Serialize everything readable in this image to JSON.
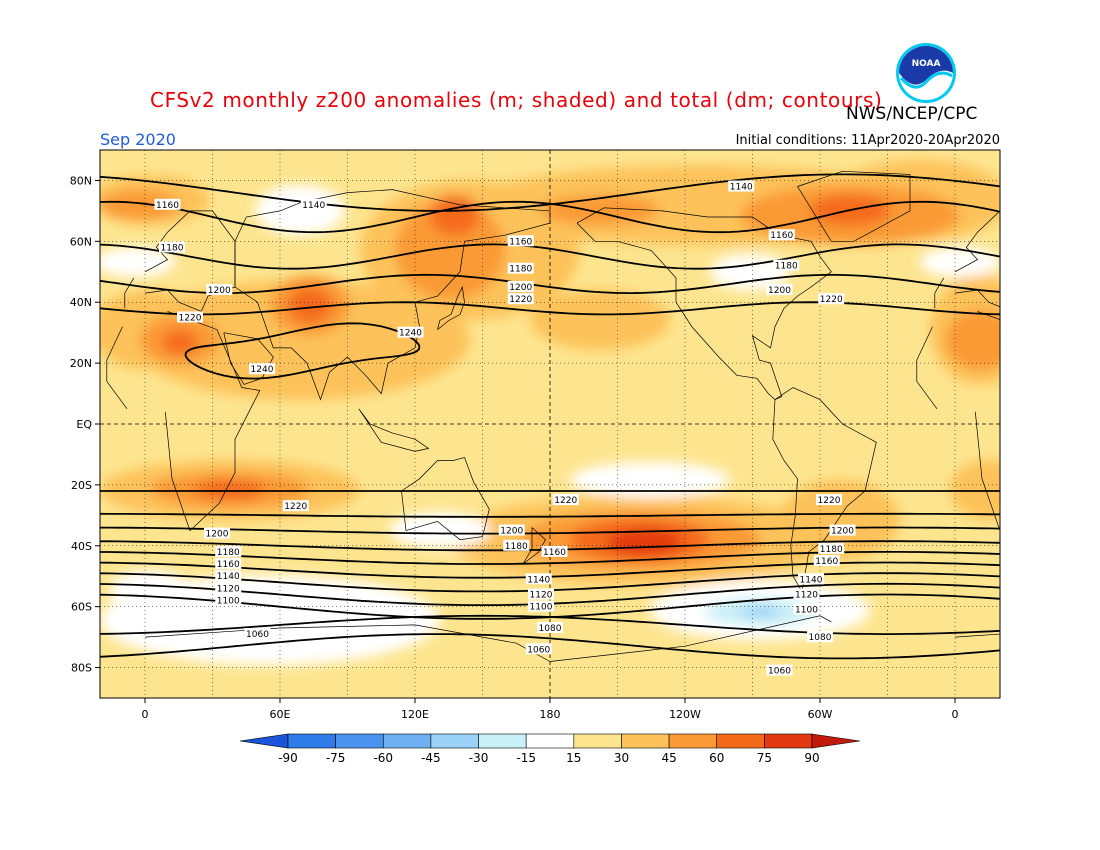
{
  "header": {
    "title": "CFSv2 monthly z200 anomalies (m; shaded) and total (dm; contours)",
    "agency": "NWS/NCEP/CPC",
    "month": "Sep 2020",
    "initial_conditions": "Initial conditions: 11Apr2020-20Apr2020",
    "logo_icon": "noaa-logo-icon",
    "logo_text": "NOAA"
  },
  "axes": {
    "lat_labels": [
      "80N",
      "60N",
      "40N",
      "20N",
      "EQ",
      "20S",
      "40S",
      "60S",
      "80S"
    ],
    "lat_values": [
      80,
      60,
      40,
      20,
      0,
      -20,
      -40,
      -60,
      -80
    ],
    "lon_labels": [
      "0",
      "60E",
      "120E",
      "180",
      "120W",
      "60W",
      "0"
    ],
    "lon_values": [
      0,
      60,
      120,
      180,
      240,
      300,
      360
    ],
    "lat_range": [
      -90,
      90
    ],
    "lon_range": [
      -20,
      380
    ]
  },
  "colorbar": {
    "labels": [
      "-90",
      "-75",
      "-60",
      "-45",
      "-30",
      "-15",
      "15",
      "30",
      "45",
      "60",
      "75",
      "90"
    ],
    "colors": [
      "#1a55d9",
      "#2f7be8",
      "#4a94ef",
      "#6eb0f2",
      "#9bd2f7",
      "#c8f0f6",
      "#ffffff",
      "#fde58f",
      "#fdc25a",
      "#fa9a36",
      "#f46a1b",
      "#e23811",
      "#c01a0c"
    ]
  },
  "contour_labels": {
    "north": [
      {
        "text": "1140",
        "lat": 72,
        "lon": 75
      },
      {
        "text": "1140",
        "lat": 78,
        "lon": 265
      },
      {
        "text": "1160",
        "lat": 72,
        "lon": 10
      },
      {
        "text": "1160",
        "lat": 60,
        "lon": 167
      },
      {
        "text": "1160",
        "lat": 62,
        "lon": 283
      },
      {
        "text": "1180",
        "lat": 58,
        "lon": 12
      },
      {
        "text": "1180",
        "lat": 51,
        "lon": 167
      },
      {
        "text": "1180",
        "lat": 52,
        "lon": 285
      },
      {
        "text": "1200",
        "lat": 44,
        "lon": 33
      },
      {
        "text": "1200",
        "lat": 45,
        "lon": 167
      },
      {
        "text": "1200",
        "lat": 44,
        "lon": 282
      },
      {
        "text": "1220",
        "lat": 35,
        "lon": 20
      },
      {
        "text": "1220",
        "lat": 41,
        "lon": 167
      },
      {
        "text": "1220",
        "lat": 41,
        "lon": 305
      },
      {
        "text": "1240",
        "lat": 30,
        "lon": 118
      },
      {
        "text": "1240",
        "lat": 18,
        "lon": 52
      }
    ],
    "south": [
      {
        "text": "1220",
        "lat": -25,
        "lon": 187
      },
      {
        "text": "1220",
        "lat": -25,
        "lon": 304
      },
      {
        "text": "1220",
        "lat": -27,
        "lon": 67
      },
      {
        "text": "1200",
        "lat": -35,
        "lon": 163
      },
      {
        "text": "1200",
        "lat": -35,
        "lon": 310
      },
      {
        "text": "1200",
        "lat": -36,
        "lon": 32
      },
      {
        "text": "1180",
        "lat": -40,
        "lon": 165
      },
      {
        "text": "1180",
        "lat": -41,
        "lon": 305
      },
      {
        "text": "1180",
        "lat": -42,
        "lon": 37
      },
      {
        "text": "1160",
        "lat": -42,
        "lon": 182
      },
      {
        "text": "1160",
        "lat": -45,
        "lon": 303
      },
      {
        "text": "1160",
        "lat": -46,
        "lon": 37
      },
      {
        "text": "1140",
        "lat": -51,
        "lon": 175
      },
      {
        "text": "1140",
        "lat": -51,
        "lon": 296
      },
      {
        "text": "1140",
        "lat": -50,
        "lon": 37
      },
      {
        "text": "1120",
        "lat": -56,
        "lon": 176
      },
      {
        "text": "1120",
        "lat": -56,
        "lon": 294
      },
      {
        "text": "1120",
        "lat": -54,
        "lon": 37
      },
      {
        "text": "1100",
        "lat": -60,
        "lon": 176
      },
      {
        "text": "1100",
        "lat": -61,
        "lon": 294
      },
      {
        "text": "1100",
        "lat": -58,
        "lon": 37
      },
      {
        "text": "1080",
        "lat": -67,
        "lon": 180
      },
      {
        "text": "1080",
        "lat": -70,
        "lon": 300
      },
      {
        "text": "1060",
        "lat": -69,
        "lon": 50
      },
      {
        "text": "1060",
        "lat": -74,
        "lon": 175
      },
      {
        "text": "1060",
        "lat": -81,
        "lon": 282
      }
    ]
  }
}
